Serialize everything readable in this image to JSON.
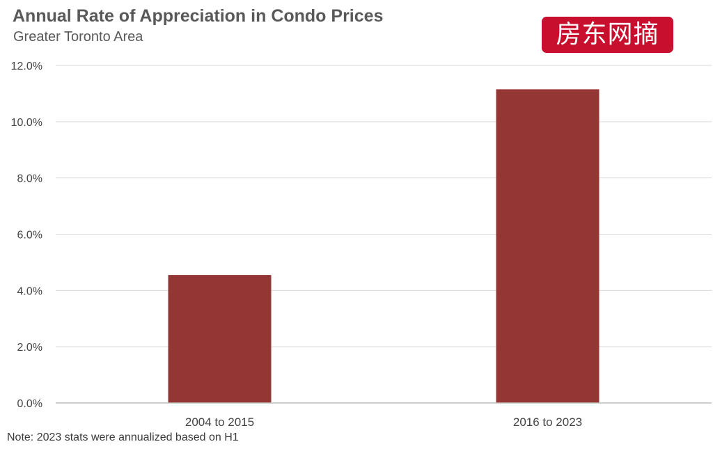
{
  "title": "Annual Rate of Appreciation in Condo Prices",
  "subtitle": "Greater Toronto Area",
  "watermark": "房东网摘",
  "note": "Note: 2023 stats were annualized based on H1",
  "colors": {
    "bar": "#943634",
    "grid": "#d9d9d9",
    "axis": "#bfbfbf"
  },
  "chart_data": {
    "type": "bar",
    "title": "Annual Rate of Appreciation in Condo Prices",
    "subtitle": "Greater Toronto Area",
    "categories": [
      "2004 to 2015",
      "2016 to 2023"
    ],
    "values": [
      4.55,
      11.15
    ],
    "unit": "%",
    "ylim": [
      0,
      12
    ],
    "yticks": [
      0,
      2,
      4,
      6,
      8,
      10,
      12
    ],
    "ytick_labels": [
      "0.0%",
      "2.0%",
      "4.0%",
      "6.0%",
      "8.0%",
      "10.0%",
      "12.0%"
    ],
    "grid": true,
    "legend": "none"
  }
}
